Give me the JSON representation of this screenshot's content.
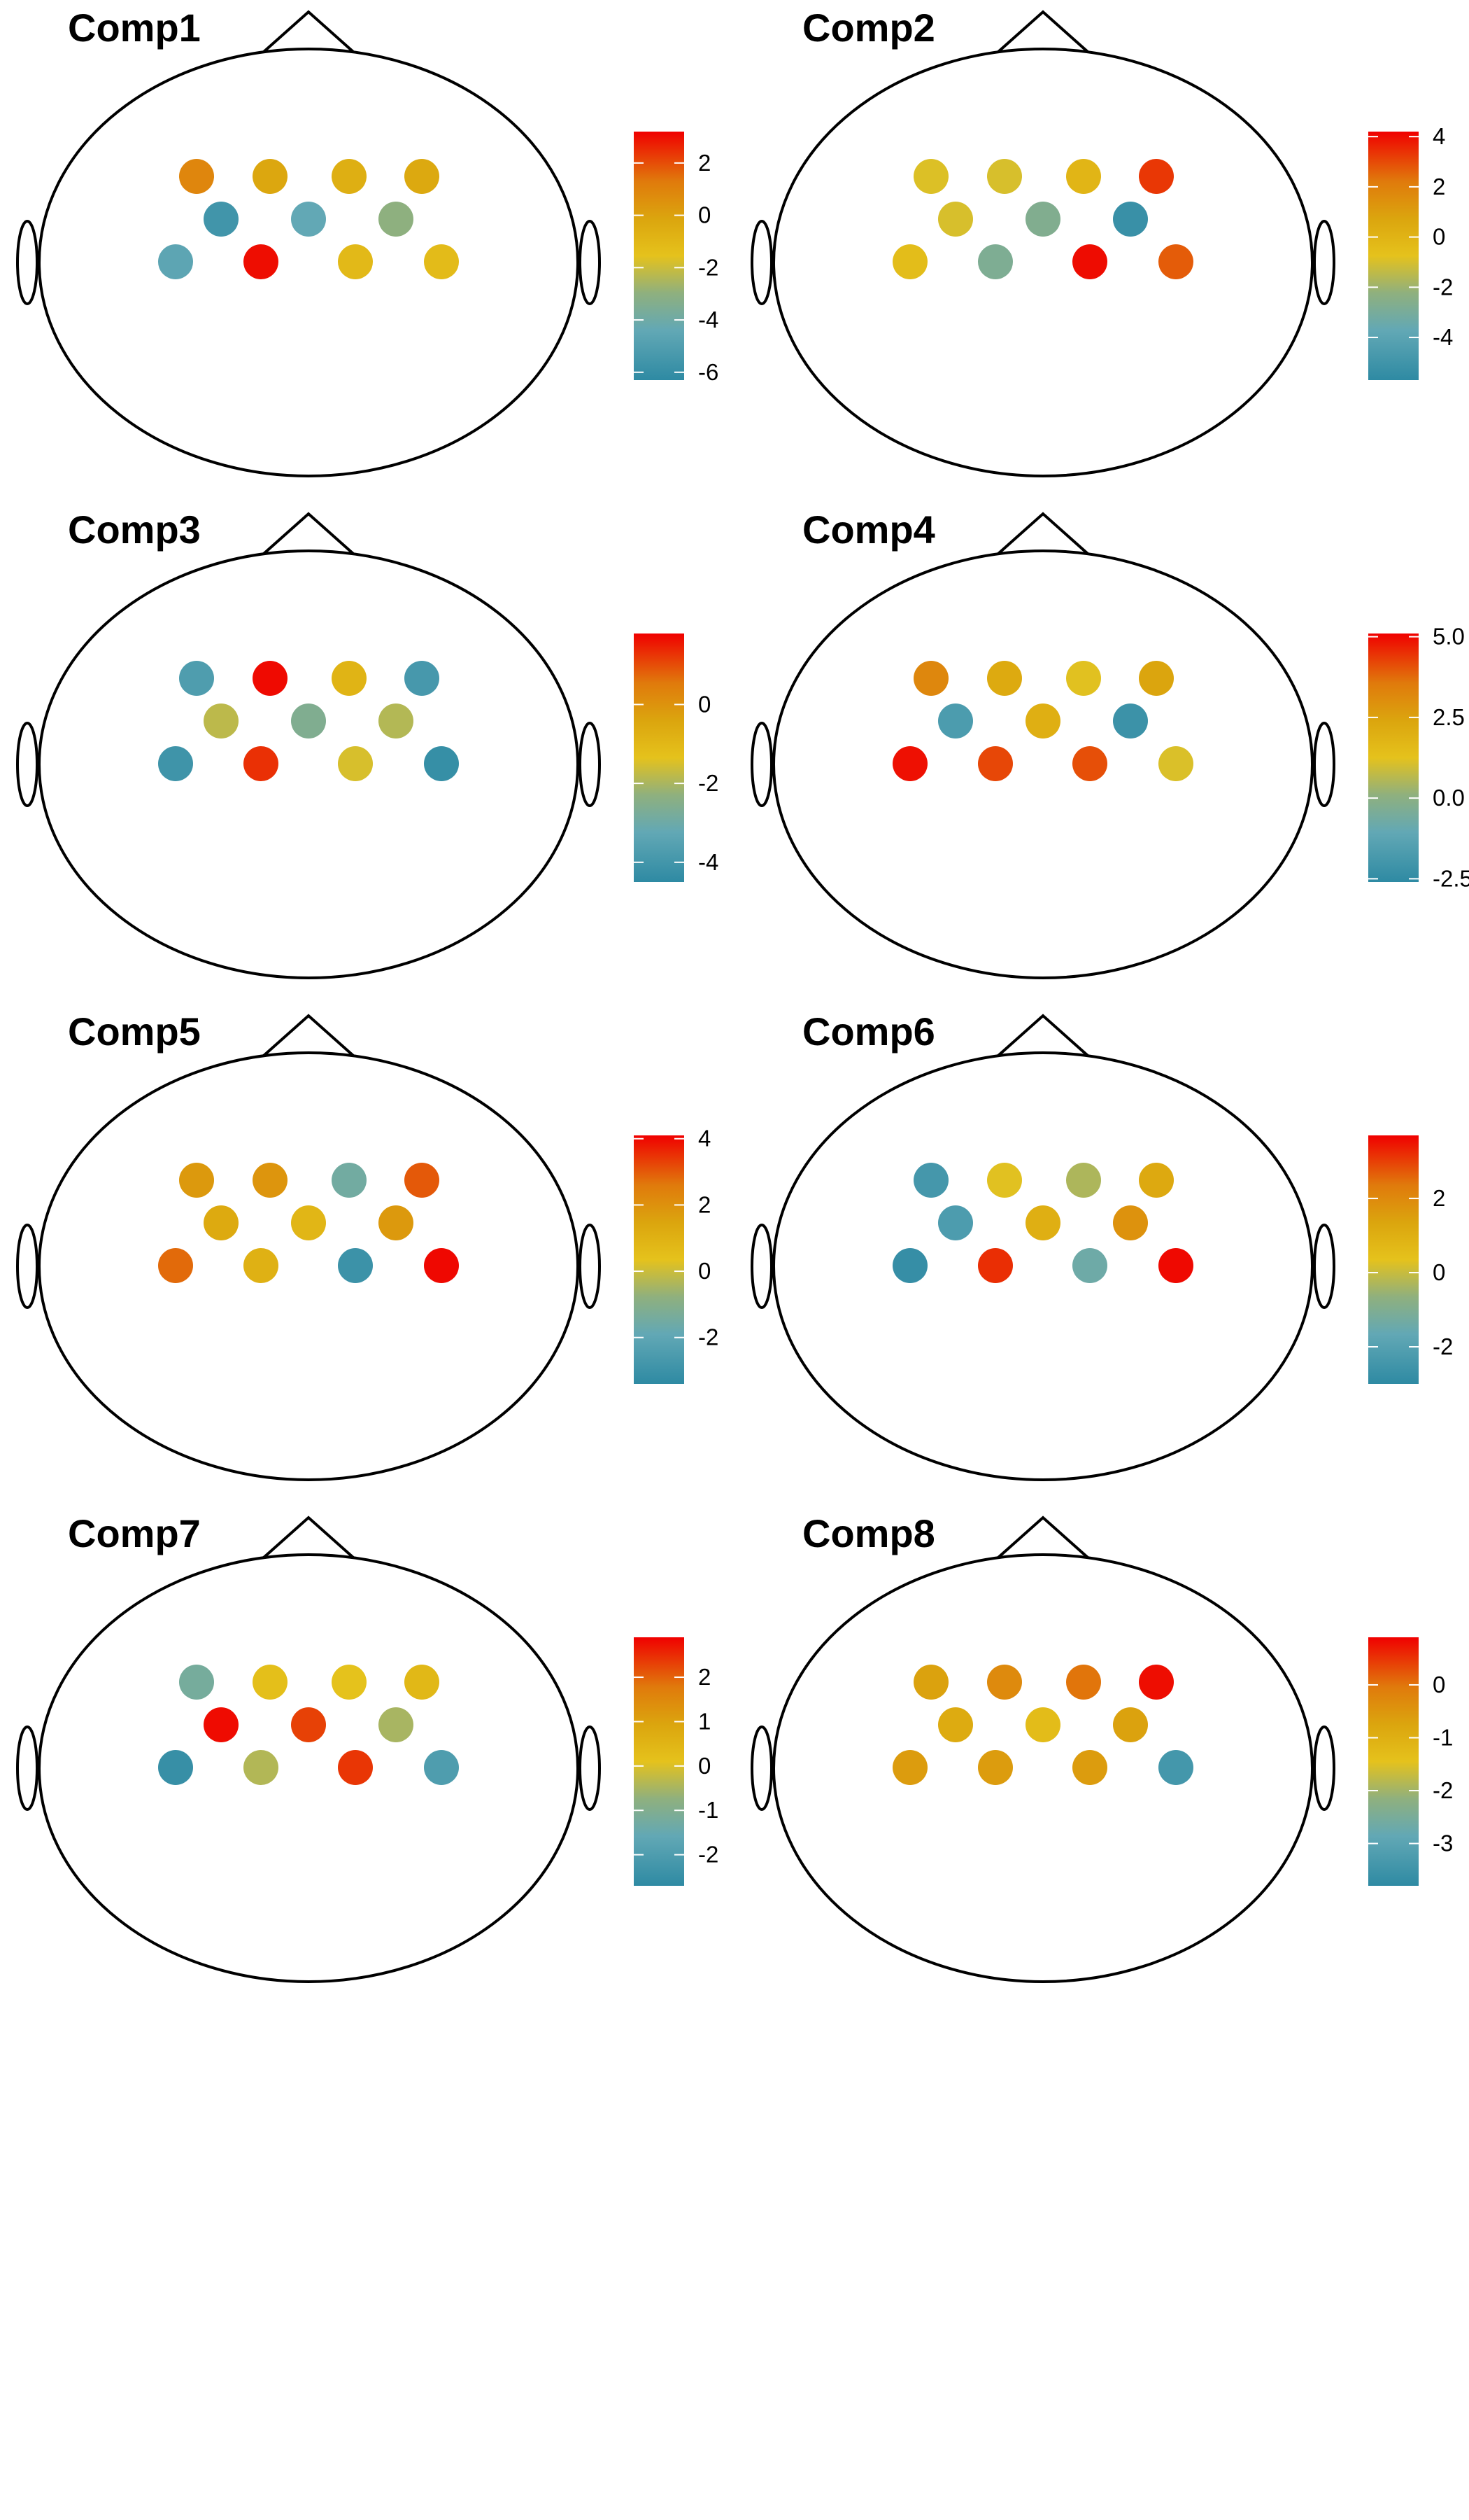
{
  "chart_data": [
    {
      "type": "heatmap",
      "title": "Comp1",
      "ticks": [
        "2",
        "0",
        "-2",
        "-4",
        "-6"
      ],
      "tick_values": [
        2,
        0,
        -2,
        -4,
        -6
      ],
      "range": [
        -6.3,
        3.2
      ],
      "values": [
        0.9,
        -0.2,
        -0.6,
        -0.3,
        -5.6,
        -4.4,
        -3.0,
        -4.6,
        3.0,
        -1.1,
        -1.2
      ]
    },
    {
      "type": "heatmap",
      "title": "Comp2",
      "ticks": [
        "4",
        "2",
        "0",
        "-2",
        "-4"
      ],
      "tick_values": [
        4,
        2,
        0,
        -2,
        -4
      ],
      "range": [
        -5.7,
        4.2
      ],
      "values": [
        -0.9,
        -1.0,
        -0.1,
        3.3,
        -1.0,
        -2.7,
        -5.3,
        -0.5,
        -2.8,
        4.0,
        2.7
      ]
    },
    {
      "type": "heatmap",
      "title": "Comp3",
      "ticks": [
        "0",
        "-2",
        "-4"
      ],
      "tick_values": [
        0,
        -2,
        -4
      ],
      "range": [
        -4.5,
        1.8
      ],
      "values": [
        -3.7,
        1.7,
        -0.9,
        -3.9,
        -1.8,
        -2.6,
        -1.9,
        -4.1,
        1.3,
        -1.5,
        -4.3
      ]
    },
    {
      "type": "heatmap",
      "title": "Comp4",
      "ticks": [
        "5.0",
        "2.5",
        "0.0",
        "-2.5"
      ],
      "tick_values": [
        5.0,
        2.5,
        0.0,
        -2.5
      ],
      "range": [
        -2.6,
        5.1
      ],
      "values": [
        3.2,
        2.2,
        1.2,
        2.4,
        -1.7,
        2.0,
        -2.2,
        4.9,
        4.2,
        4.1,
        1.1
      ]
    },
    {
      "type": "heatmap",
      "title": "Comp5",
      "ticks": [
        "4",
        "2",
        "0",
        "-2"
      ],
      "tick_values": [
        4,
        2,
        0,
        -2
      ],
      "range": [
        -3.4,
        4.1
      ],
      "values": [
        1.8,
        1.9,
        -1.5,
        3.0,
        1.3,
        0.8,
        1.8,
        2.8,
        1.0,
        -3.0,
        4.0
      ]
    },
    {
      "type": "heatmap",
      "title": "Comp6",
      "ticks": [
        "2",
        "0",
        "-2"
      ],
      "tick_values": [
        2,
        0,
        -2
      ],
      "range": [
        -3.0,
        3.7
      ],
      "values": [
        -2.4,
        0.3,
        -0.3,
        1.2,
        -2.2,
        1.0,
        1.8,
        -2.8,
        3.2,
        -1.4,
        3.6
      ]
    },
    {
      "type": "heatmap",
      "title": "Comp7",
      "ticks": [
        "2",
        "1",
        "0",
        "-1",
        "-2"
      ],
      "tick_values": [
        2,
        1,
        0,
        -1,
        -2
      ],
      "range": [
        -2.7,
        2.9
      ],
      "values": [
        -1.2,
        0.2,
        0.1,
        0.4,
        2.8,
        2.3,
        -0.5,
        -2.5,
        -0.4,
        2.4,
        -2.0
      ]
    },
    {
      "type": "heatmap",
      "title": "Comp8",
      "ticks": [
        "0",
        "-1",
        "-2",
        "-3"
      ],
      "tick_values": [
        0,
        -1,
        -2,
        -3
      ],
      "range": [
        -3.8,
        0.9
      ],
      "values": [
        -0.7,
        -0.3,
        0.0,
        0.8,
        -0.9,
        -1.3,
        -0.7,
        -0.6,
        -0.6,
        -0.6,
        -3.4
      ]
    }
  ]
}
